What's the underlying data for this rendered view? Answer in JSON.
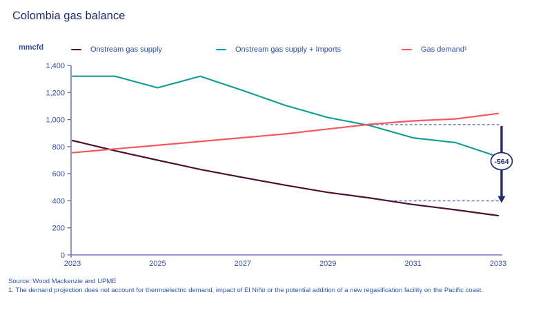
{
  "header": {
    "title": "Colombia gas balance"
  },
  "chart_data": {
    "type": "line",
    "title": "Colombia gas balance",
    "ylabel": "mmcfd",
    "xlabel": "",
    "x": [
      2023,
      2024,
      2025,
      2026,
      2027,
      2028,
      2029,
      2030,
      2031,
      2032,
      2033
    ],
    "xtick_years": [
      2023,
      2025,
      2027,
      2029,
      2031,
      2033
    ],
    "xtick_labels": [
      "2023",
      "2025",
      "2027",
      "2029",
      "2031",
      "2033"
    ],
    "ytick_values": [
      0,
      200,
      400,
      600,
      800,
      1000,
      1200,
      1400
    ],
    "ytick_labels": [
      "0",
      "200",
      "400",
      "600",
      "800",
      "1,000",
      "1,200",
      "1,400"
    ],
    "ylim": [
      0,
      1400
    ],
    "grid": false,
    "legend_position": "top",
    "series": [
      {
        "name": "Onstream gas supply",
        "color": "#4D1135",
        "values": [
          845,
          770,
          700,
          632,
          572,
          515,
          462,
          420,
          372,
          333,
          290
        ]
      },
      {
        "name": "Onstream gas supply + Imports",
        "color": "#179E98",
        "values": [
          1320,
          1320,
          1235,
          1320,
          1215,
          1105,
          1015,
          955,
          865,
          830,
          725
        ]
      },
      {
        "name": "Gas demand¹",
        "color": "#F9575F",
        "values": [
          755,
          783,
          810,
          838,
          866,
          894,
          930,
          965,
          990,
          1005,
          1045
        ]
      }
    ],
    "annotation": {
      "label": "-564",
      "top_value": 963,
      "bottom_value": 399,
      "top_start_year": 2029.9,
      "bottom_start_year": 2030.45,
      "arrow_year": 2033.08
    }
  },
  "colors": {
    "title": "#1F2C6E",
    "axis": "#7379B9",
    "tick_text": "#35529E",
    "legend_text": "#2C4FA0",
    "dashed": "#5A67A8",
    "annotation": "#222D6D",
    "footer_text": "#2C55A8"
  },
  "footer": {
    "source": "Source: Wood Mackenzie and UPME",
    "footnote": "1. The demand projection does not account for thermoelectric demand, impact of El Niño or the potential addition of a new regasification facility on the Pacific coast."
  }
}
